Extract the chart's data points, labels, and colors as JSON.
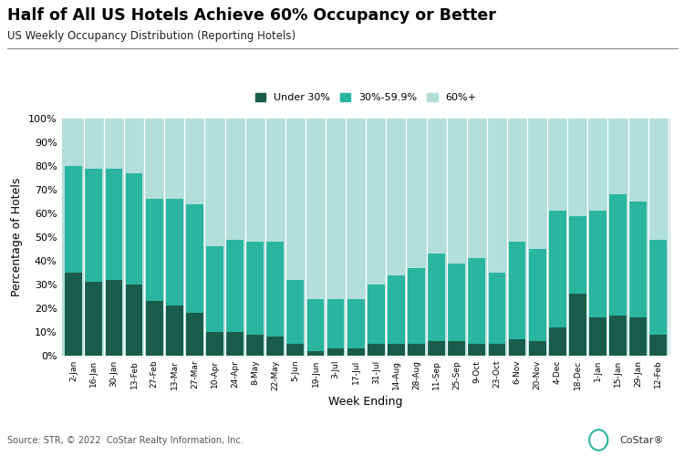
{
  "title": "Half of All US Hotels Achieve 60% Occupancy or Better",
  "subtitle": "US Weekly Occupancy Distribution (Reporting Hotels)",
  "xlabel": "Week Ending",
  "ylabel": "Percentage of Hotels",
  "source": "Source: STR, © 2022  CoStar Realty Information, Inc.",
  "categories": [
    "2-Jan",
    "16-Jan",
    "30-Jan",
    "13-Feb",
    "27-Feb",
    "13-Mar",
    "27-Mar",
    "10-Apr",
    "24-Apr",
    "8-May",
    "22-May",
    "5-Jun",
    "19-Jun",
    "3-Jul",
    "17-Jul",
    "31-Jul",
    "14-Aug",
    "28-Aug",
    "11-Sep",
    "25-Sep",
    "9-Oct",
    "23-Oct",
    "6-Nov",
    "20-Nov",
    "4-Dec",
    "18-Dec",
    "1-Jan",
    "15-Jan",
    "29-Jan",
    "12-Feb"
  ],
  "under30": [
    35,
    31,
    32,
    30,
    23,
    21,
    18,
    10,
    10,
    9,
    8,
    5,
    2,
    3,
    3,
    5,
    5,
    5,
    6,
    6,
    5,
    5,
    7,
    6,
    12,
    26,
    16,
    17,
    16,
    9
  ],
  "mid": [
    45,
    48,
    47,
    47,
    43,
    45,
    46,
    36,
    39,
    39,
    40,
    27,
    22,
    21,
    21,
    25,
    29,
    32,
    37,
    33,
    36,
    30,
    41,
    39,
    49,
    33,
    45,
    51,
    49,
    40
  ],
  "top60": [
    20,
    21,
    21,
    23,
    34,
    34,
    36,
    54,
    51,
    52,
    52,
    68,
    76,
    76,
    76,
    70,
    66,
    63,
    57,
    61,
    59,
    65,
    52,
    55,
    39,
    41,
    39,
    32,
    35,
    51
  ],
  "color_under30": "#1a5c4a",
  "color_mid": "#2ab5a0",
  "color_top60": "#b2dfd9",
  "background_color": "#ffffff",
  "grid_color": "#ffffff"
}
